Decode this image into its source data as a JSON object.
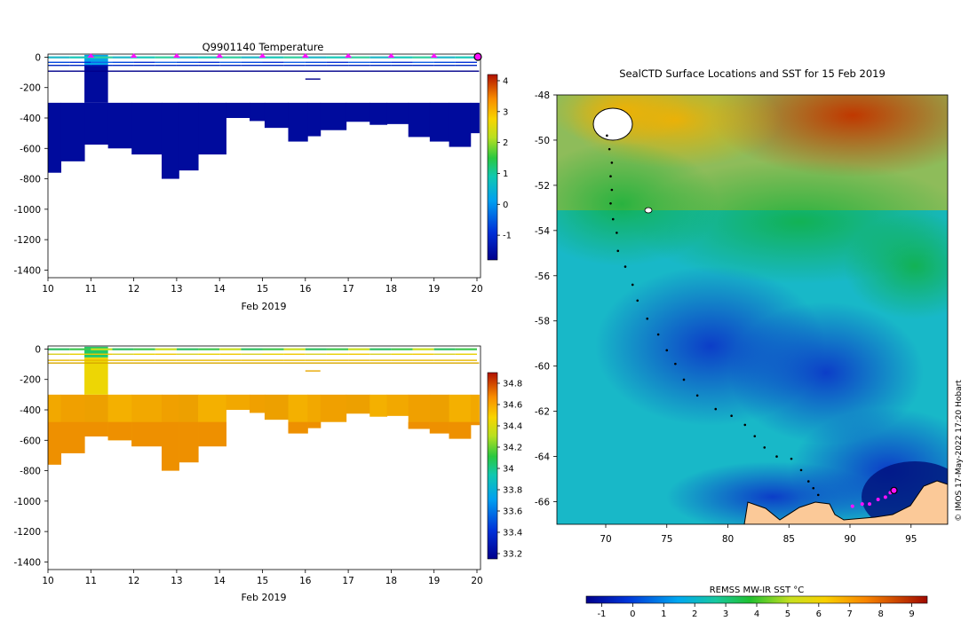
{
  "chart_data": [
    {
      "type": "heatmap",
      "title": "Q9901140  Temperature",
      "xlabel": "Feb 2019",
      "ylabel": "",
      "x_ticks": [
        10,
        11,
        12,
        13,
        14,
        15,
        16,
        17,
        18,
        19,
        20
      ],
      "y_ticks": [
        0,
        -200,
        -400,
        -600,
        -800,
        -1000,
        -1200,
        -1400
      ],
      "xlim": [
        10,
        20
      ],
      "ylim": [
        -1450,
        20
      ],
      "colorbar": {
        "ticks": [
          4,
          3,
          2,
          1,
          0,
          -1
        ],
        "range": [
          -1.8,
          4.2
        ]
      },
      "profile_markers": [
        11,
        12,
        13,
        14,
        15,
        16,
        17,
        18,
        19
      ],
      "latest_marker": 20,
      "deep_layer_value": -1.6,
      "surface_anomaly_value": 0.2,
      "profiles": [
        {
          "x0": 10.0,
          "x1": 10.3,
          "bottom": -760
        },
        {
          "x0": 10.3,
          "x1": 10.85,
          "bottom": -685
        },
        {
          "x0": 10.85,
          "x1": 11.4,
          "bottom": -575
        },
        {
          "x0": 11.4,
          "x1": 11.95,
          "bottom": -600
        },
        {
          "x0": 11.95,
          "x1": 12.65,
          "bottom": -640
        },
        {
          "x0": 12.65,
          "x1": 13.05,
          "bottom": -800
        },
        {
          "x0": 13.05,
          "x1": 13.5,
          "bottom": -745
        },
        {
          "x0": 13.5,
          "x1": 14.15,
          "bottom": -640
        },
        {
          "x0": 14.15,
          "x1": 14.7,
          "bottom": -400
        },
        {
          "x0": 14.7,
          "x1": 15.05,
          "bottom": -420
        },
        {
          "x0": 15.05,
          "x1": 15.6,
          "bottom": -465
        },
        {
          "x0": 15.6,
          "x1": 16.05,
          "bottom": -555
        },
        {
          "x0": 16.05,
          "x1": 16.35,
          "bottom": -520
        },
        {
          "x0": 16.35,
          "x1": 16.95,
          "bottom": -480
        },
        {
          "x0": 16.95,
          "x1": 17.5,
          "bottom": -425
        },
        {
          "x0": 17.5,
          "x1": 17.9,
          "bottom": -445
        },
        {
          "x0": 17.9,
          "x1": 18.4,
          "bottom": -440
        },
        {
          "x0": 18.4,
          "x1": 18.9,
          "bottom": -525
        },
        {
          "x0": 18.9,
          "x1": 19.35,
          "bottom": -555
        },
        {
          "x0": 19.35,
          "x1": 19.85,
          "bottom": -590
        },
        {
          "x0": 19.85,
          "x1": 20.05,
          "bottom": -500
        }
      ]
    },
    {
      "type": "heatmap",
      "title": "",
      "xlabel": "Feb 2019",
      "ylabel": "",
      "x_ticks": [
        10,
        11,
        12,
        13,
        14,
        15,
        16,
        17,
        18,
        19,
        20
      ],
      "y_ticks": [
        0,
        -200,
        -400,
        -600,
        -800,
        -1000,
        -1200,
        -1400
      ],
      "xlim": [
        10,
        20
      ],
      "ylim": [
        -1450,
        20
      ],
      "colorbar": {
        "ticks": [
          34.8,
          34.6,
          34.4,
          34.2,
          34,
          33.8,
          33.6,
          33.4,
          33.2
        ],
        "range": [
          33.15,
          34.9
        ]
      },
      "deep_layer_value": 34.45,
      "surface_anomaly_value": 34.05
    },
    {
      "type": "heatmap",
      "title": "SealCTD Surface Locations and SST for 15 Feb 2019",
      "xlabel": "",
      "ylabel": "",
      "x_ticks": [
        70,
        75,
        80,
        85,
        90,
        95
      ],
      "y_ticks": [
        -48,
        -50,
        -52,
        -54,
        -56,
        -58,
        -60,
        -62,
        -64,
        -66
      ],
      "xlim": [
        66,
        98
      ],
      "ylim": [
        -67,
        -48
      ],
      "colorbar": {
        "label": "REMSS MW-IR SST °C",
        "ticks": [
          -1,
          0,
          1,
          2,
          3,
          4,
          5,
          6,
          7,
          8,
          9
        ],
        "range": [
          -1.5,
          9.5
        ]
      },
      "track": [
        [
          70.1,
          -49.8
        ],
        [
          70.3,
          -50.4
        ],
        [
          70.5,
          -51.0
        ],
        [
          70.4,
          -51.6
        ],
        [
          70.5,
          -52.2
        ],
        [
          70.4,
          -52.8
        ],
        [
          70.6,
          -53.5
        ],
        [
          70.9,
          -54.1
        ],
        [
          71.0,
          -54.9
        ],
        [
          71.6,
          -55.6
        ],
        [
          72.2,
          -56.4
        ],
        [
          72.6,
          -57.1
        ],
        [
          73.4,
          -57.9
        ],
        [
          74.3,
          -58.6
        ],
        [
          75.0,
          -59.3
        ],
        [
          75.7,
          -59.9
        ],
        [
          76.4,
          -60.6
        ],
        [
          77.5,
          -61.3
        ],
        [
          79.0,
          -61.9
        ],
        [
          80.3,
          -62.2
        ],
        [
          81.4,
          -62.6
        ],
        [
          82.2,
          -63.1
        ],
        [
          83.0,
          -63.6
        ],
        [
          84.0,
          -64.0
        ],
        [
          85.2,
          -64.1
        ],
        [
          86.0,
          -64.6
        ],
        [
          86.6,
          -65.1
        ],
        [
          87.0,
          -65.4
        ],
        [
          87.4,
          -65.7
        ]
      ],
      "recent_positions": [
        [
          90.2,
          -66.2
        ],
        [
          91.0,
          -66.1
        ],
        [
          91.6,
          -66.1
        ],
        [
          92.3,
          -65.9
        ],
        [
          92.9,
          -65.8
        ],
        [
          93.3,
          -65.6
        ]
      ],
      "latest_position": [
        93.6,
        -65.5
      ]
    }
  ],
  "credit": "© IMOS 17-May-2022 17:20 Hobart"
}
